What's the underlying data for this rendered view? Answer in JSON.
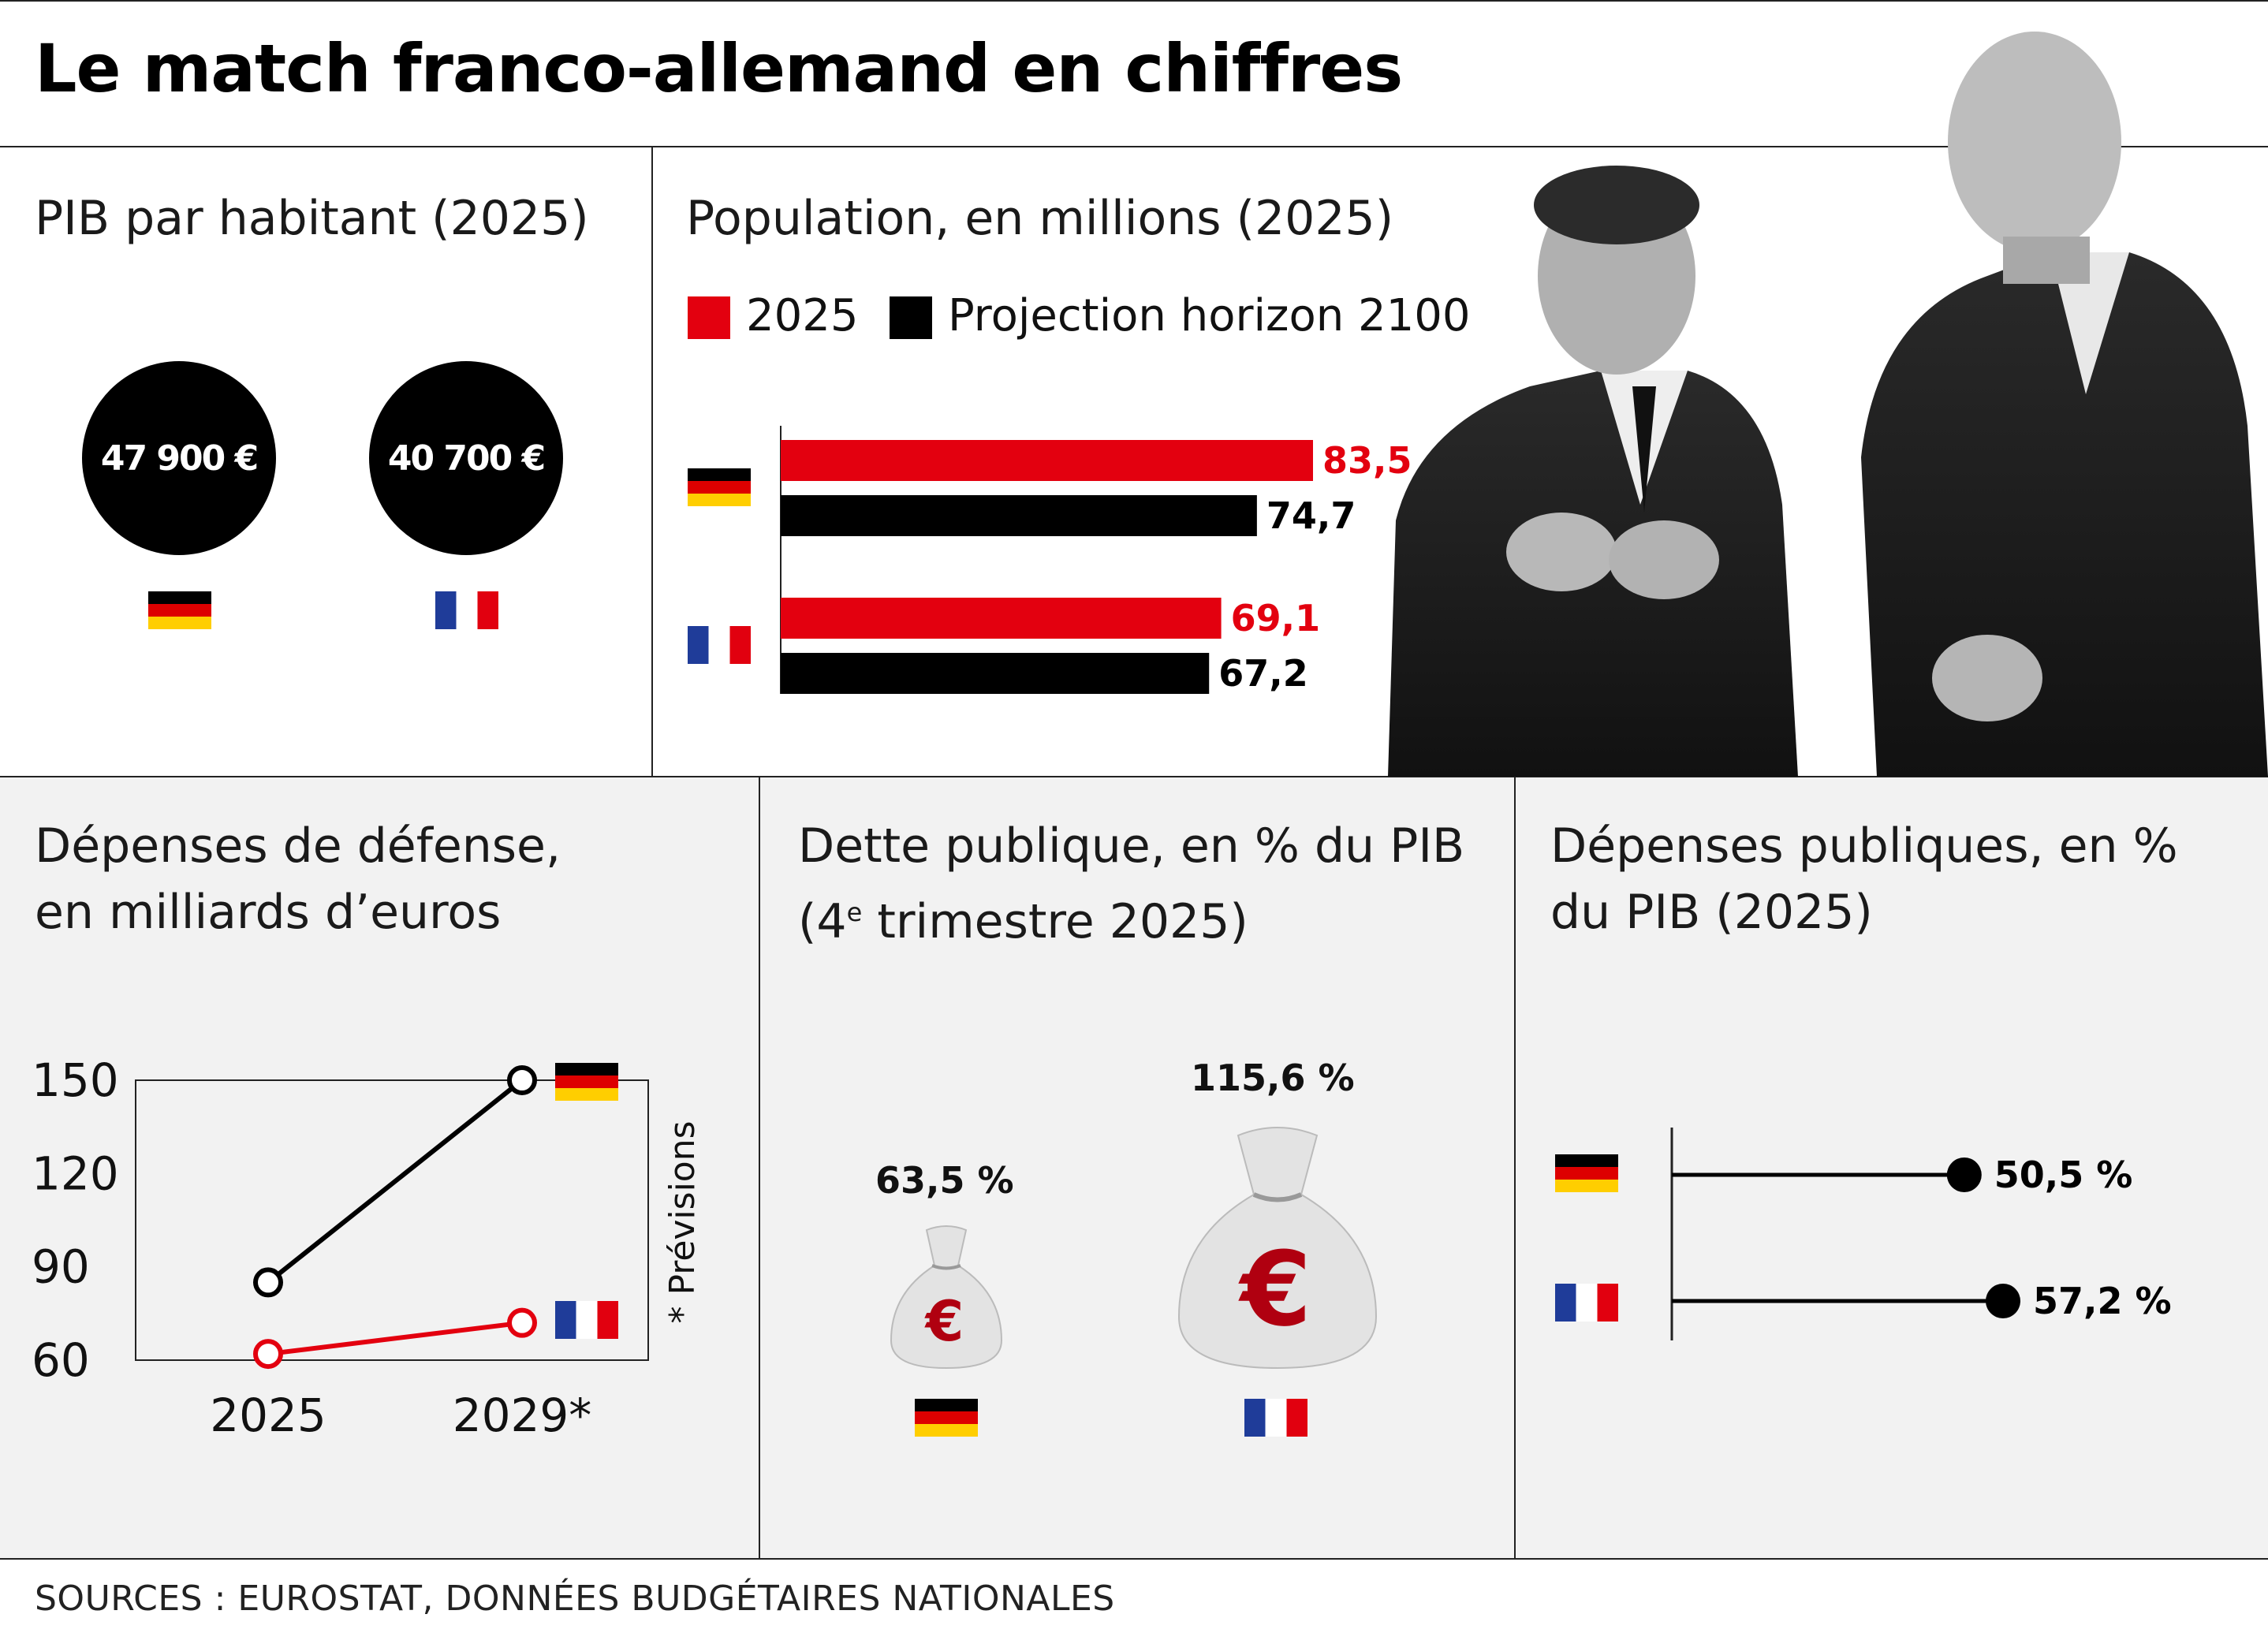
{
  "title": "Le match franco-allemand en chiffres",
  "sources": "SOURCES : EUROSTAT, DONNÉES BUDGÉTAIRES NATIONALES",
  "colors": {
    "red": "#e3000f",
    "black": "#000000",
    "gray_band": "#f2f2f2"
  },
  "pib": {
    "title": "PIB par habitant (2025)",
    "items": [
      {
        "country": "germany",
        "label": "47 900 €"
      },
      {
        "country": "france",
        "label": "40 700 €"
      }
    ]
  },
  "population": {
    "title": "Population, en millions (2025)",
    "legend": [
      "2025",
      "Projection horizon 2100"
    ]
  },
  "defense": {
    "title_line1": "Dépenses de défense,",
    "title_line2": "en milliards d’euros",
    "note": "* Prévisions"
  },
  "dette": {
    "title_line1": "Dette publique, en % du PIB",
    "title_line2_pre": "(4",
    "title_line2_sup": "e",
    "title_line2_post": " trimestre 2025)",
    "items": [
      {
        "country": "germany",
        "label": "63,5 %"
      },
      {
        "country": "france",
        "label": "115,6 %"
      }
    ]
  },
  "depenses": {
    "title_line1": "Dépenses publiques, en %",
    "title_line2": "du PIB (2025)",
    "items": [
      {
        "country": "germany",
        "label": "50,5 %"
      },
      {
        "country": "france",
        "label": "57,2 %"
      }
    ]
  },
  "chart_data": [
    {
      "type": "bar",
      "title": "Population, en millions (2025)",
      "categories": [
        "Allemagne",
        "France"
      ],
      "series": [
        {
          "name": "2025",
          "values": [
            83.5,
            69.1
          ],
          "labels": [
            "83,5",
            "69,1"
          ]
        },
        {
          "name": "Projection horizon 2100",
          "values": [
            74.7,
            67.2
          ],
          "labels": [
            "74,7",
            "67,2"
          ]
        }
      ],
      "orientation": "horizontal"
    },
    {
      "type": "line",
      "title": "Dépenses de défense, en milliards d’euros",
      "x": [
        "2025",
        "2029*"
      ],
      "series": [
        {
          "country": "germany",
          "values": [
            85,
            150
          ]
        },
        {
          "country": "france",
          "values": [
            62,
            72
          ]
        }
      ],
      "ylim": [
        60,
        150
      ],
      "yticks": [
        60,
        90,
        120,
        150
      ],
      "ytick_labels": [
        "60",
        "90",
        "120",
        "150"
      ]
    },
    {
      "type": "bar",
      "title": "Dépenses publiques, en % du PIB (2025)",
      "categories": [
        "Allemagne",
        "France"
      ],
      "values": [
        50.5,
        57.2
      ],
      "orientation": "horizontal",
      "style": "lollipop"
    }
  ]
}
